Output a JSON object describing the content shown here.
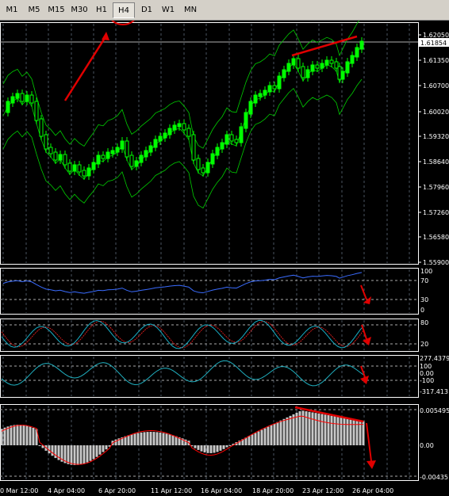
{
  "toolbar": {
    "timeframes": [
      "M1",
      "M5",
      "M15",
      "M30",
      "H1",
      "H4",
      "D1",
      "W1",
      "MN"
    ],
    "active": "H4"
  },
  "price_axis": {
    "labels": [
      "1.62050",
      "1.61350",
      "1.60700",
      "1.60020",
      "1.59320",
      "1.58640",
      "1.57960",
      "1.57260",
      "1.56580",
      "1.55900"
    ],
    "current": "1.61854"
  },
  "indicator_axes": {
    "rsi": [
      "100",
      "70",
      "30",
      "0"
    ],
    "stoch": [
      "80",
      "20"
    ],
    "cci": [
      "277.4379",
      "100",
      "0.00",
      "-100",
      "-317.413"
    ],
    "macd": [
      "0.005495",
      "0.00",
      "-0.00435"
    ]
  },
  "time_axis": [
    "0 Mar 12:00",
    "4 Apr 04:00",
    "6 Apr 20:00",
    "11 Apr 12:00",
    "16 Apr 04:00",
    "18 Apr 20:00",
    "23 Apr 12:00",
    "26 Apr 04:00"
  ],
  "colors": {
    "bull": "#00ff00",
    "bear": "#00ff00",
    "band": "#00cc00",
    "rsi_line": "#3a6cff",
    "stoch_main": "#18b0c8",
    "stoch_signal": "#ff2020",
    "cci_line": "#20b0c0",
    "macd_hist": "#c8c8c8",
    "macd_signal": "#ff0000",
    "annotation": "#e00000"
  }
}
